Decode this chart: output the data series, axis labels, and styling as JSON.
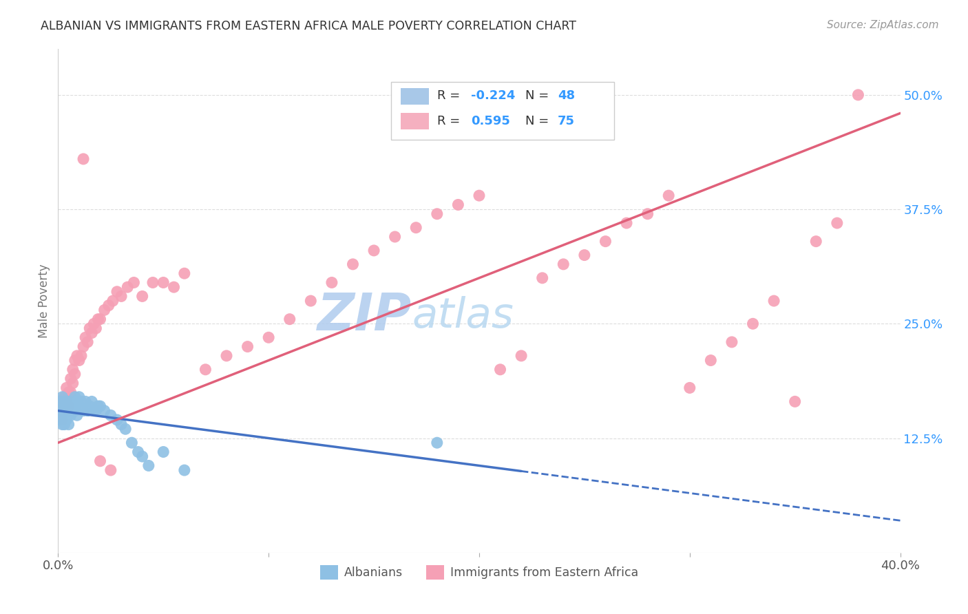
{
  "title": "ALBANIAN VS IMMIGRANTS FROM EASTERN AFRICA MALE POVERTY CORRELATION CHART",
  "source": "Source: ZipAtlas.com",
  "ylabel": "Male Poverty",
  "right_yticks": [
    "50.0%",
    "37.5%",
    "25.0%",
    "12.5%"
  ],
  "right_ytick_vals": [
    0.5,
    0.375,
    0.25,
    0.125
  ],
  "albanian_color": "#8ec0e4",
  "eastern_africa_color": "#f5a0b5",
  "albanian_line_color": "#4472c4",
  "eastern_africa_line_color": "#e0607a",
  "background_color": "#ffffff",
  "watermark_color": "#cde4f5",
  "xlim": [
    0.0,
    0.4
  ],
  "ylim": [
    0.0,
    0.55
  ],
  "albanian_x": [
    0.001,
    0.001,
    0.001,
    0.002,
    0.002,
    0.002,
    0.002,
    0.003,
    0.003,
    0.003,
    0.004,
    0.004,
    0.004,
    0.005,
    0.005,
    0.005,
    0.006,
    0.006,
    0.007,
    0.007,
    0.008,
    0.008,
    0.009,
    0.009,
    0.01,
    0.01,
    0.011,
    0.012,
    0.013,
    0.014,
    0.015,
    0.016,
    0.017,
    0.018,
    0.019,
    0.02,
    0.022,
    0.025,
    0.028,
    0.03,
    0.032,
    0.035,
    0.038,
    0.04,
    0.043,
    0.05,
    0.06,
    0.18
  ],
  "albanian_y": [
    0.145,
    0.155,
    0.165,
    0.14,
    0.15,
    0.16,
    0.17,
    0.14,
    0.155,
    0.165,
    0.145,
    0.155,
    0.165,
    0.14,
    0.155,
    0.165,
    0.15,
    0.16,
    0.155,
    0.165,
    0.155,
    0.17,
    0.15,
    0.165,
    0.16,
    0.17,
    0.165,
    0.155,
    0.165,
    0.155,
    0.16,
    0.165,
    0.155,
    0.155,
    0.16,
    0.16,
    0.155,
    0.15,
    0.145,
    0.14,
    0.135,
    0.12,
    0.11,
    0.105,
    0.095,
    0.11,
    0.09,
    0.12
  ],
  "eastern_africa_x": [
    0.001,
    0.001,
    0.002,
    0.002,
    0.003,
    0.003,
    0.004,
    0.004,
    0.005,
    0.005,
    0.006,
    0.006,
    0.007,
    0.007,
    0.008,
    0.008,
    0.009,
    0.01,
    0.011,
    0.012,
    0.013,
    0.014,
    0.015,
    0.016,
    0.017,
    0.018,
    0.019,
    0.02,
    0.022,
    0.024,
    0.026,
    0.028,
    0.03,
    0.033,
    0.036,
    0.04,
    0.045,
    0.05,
    0.055,
    0.06,
    0.07,
    0.08,
    0.09,
    0.1,
    0.11,
    0.12,
    0.13,
    0.14,
    0.15,
    0.16,
    0.17,
    0.18,
    0.19,
    0.2,
    0.21,
    0.22,
    0.23,
    0.24,
    0.25,
    0.26,
    0.27,
    0.28,
    0.29,
    0.3,
    0.31,
    0.32,
    0.33,
    0.34,
    0.35,
    0.36,
    0.37,
    0.38,
    0.012,
    0.02,
    0.025
  ],
  "eastern_africa_y": [
    0.155,
    0.165,
    0.145,
    0.165,
    0.155,
    0.17,
    0.165,
    0.18,
    0.16,
    0.175,
    0.175,
    0.19,
    0.185,
    0.2,
    0.195,
    0.21,
    0.215,
    0.21,
    0.215,
    0.225,
    0.235,
    0.23,
    0.245,
    0.24,
    0.25,
    0.245,
    0.255,
    0.255,
    0.265,
    0.27,
    0.275,
    0.285,
    0.28,
    0.29,
    0.295,
    0.28,
    0.295,
    0.295,
    0.29,
    0.305,
    0.2,
    0.215,
    0.225,
    0.235,
    0.255,
    0.275,
    0.295,
    0.315,
    0.33,
    0.345,
    0.355,
    0.37,
    0.38,
    0.39,
    0.2,
    0.215,
    0.3,
    0.315,
    0.325,
    0.34,
    0.36,
    0.37,
    0.39,
    0.18,
    0.21,
    0.23,
    0.25,
    0.275,
    0.165,
    0.34,
    0.36,
    0.5,
    0.43,
    0.1,
    0.09
  ]
}
